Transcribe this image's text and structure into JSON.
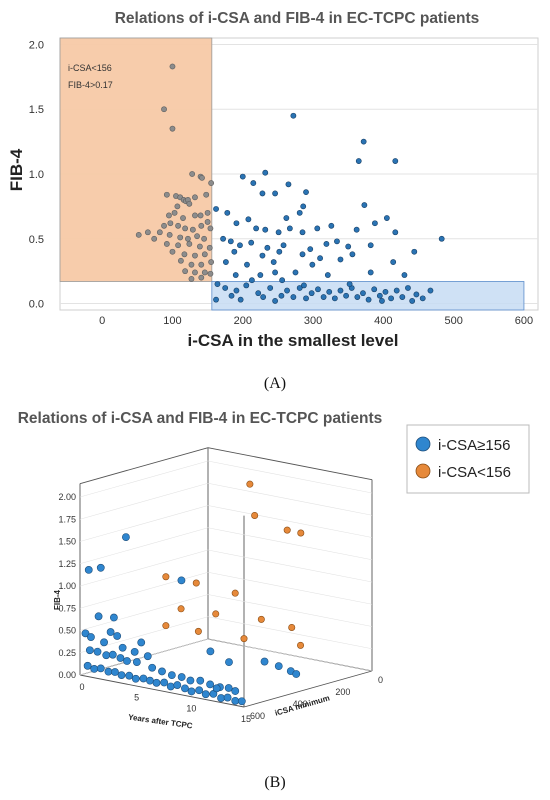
{
  "chart_data": [
    {
      "type": "scatter",
      "title": "Relations of i-CSA and FIB-4 in EC-TCPC patients",
      "xlabel": "i-CSA in the smallest level",
      "ylabel": "FIB-4",
      "xlim": [
        -60,
        620
      ],
      "ylim": [
        -0.05,
        2.05
      ],
      "xticks": [
        "0",
        "100",
        "200",
        "300",
        "400",
        "500",
        "600"
      ],
      "yticks": [
        "0.0",
        "0.5",
        "1.0",
        "1.5",
        "2.0"
      ],
      "grid": "horizontal",
      "annotation": [
        "i-CSA<156",
        "FIB-4>0.17"
      ],
      "regions": [
        {
          "name": "i-CSA<156",
          "x": [
            -60,
            156
          ],
          "y": [
            0.17,
            2.05
          ],
          "color": "#f7c9a6"
        },
        {
          "name": "FIB-4<0.17",
          "x": [
            156,
            600
          ],
          "y": [
            -0.05,
            0.17
          ],
          "color": "#c7dcf3"
        }
      ],
      "series": [
        {
          "color": "#8c8c8c",
          "points": [
            [
              100,
              1.83
            ],
            [
              88,
              1.5
            ],
            [
              100,
              1.35
            ],
            [
              128,
              1.0
            ],
            [
              140,
              0.98
            ],
            [
              142,
              0.97
            ],
            [
              155,
              0.93
            ],
            [
              92,
              0.84
            ],
            [
              105,
              0.83
            ],
            [
              111,
              0.82
            ],
            [
              116,
              0.8
            ],
            [
              119,
              0.79
            ],
            [
              122,
              0.8
            ],
            [
              107,
              0.75
            ],
            [
              124,
              0.77
            ],
            [
              132,
              0.82
            ],
            [
              148,
              0.84
            ],
            [
              103,
              0.7
            ],
            [
              95,
              0.68
            ],
            [
              115,
              0.66
            ],
            [
              132,
              0.68
            ],
            [
              140,
              0.68
            ],
            [
              150,
              0.7
            ],
            [
              88,
              0.6
            ],
            [
              97,
              0.62
            ],
            [
              108,
              0.6
            ],
            [
              118,
              0.58
            ],
            [
              129,
              0.57
            ],
            [
              141,
              0.6
            ],
            [
              154,
              0.58
            ],
            [
              150,
              0.63
            ],
            [
              52,
              0.53
            ],
            [
              65,
              0.55
            ],
            [
              82,
              0.55
            ],
            [
              74,
              0.5
            ],
            [
              96,
              0.53
            ],
            [
              111,
              0.51
            ],
            [
              122,
              0.5
            ],
            [
              135,
              0.52
            ],
            [
              145,
              0.5
            ],
            [
              92,
              0.46
            ],
            [
              108,
              0.45
            ],
            [
              124,
              0.46
            ],
            [
              139,
              0.44
            ],
            [
              153,
              0.43
            ],
            [
              100,
              0.4
            ],
            [
              117,
              0.38
            ],
            [
              132,
              0.37
            ],
            [
              146,
              0.38
            ],
            [
              112,
              0.33
            ],
            [
              127,
              0.3
            ],
            [
              141,
              0.3
            ],
            [
              155,
              0.32
            ],
            [
              118,
              0.25
            ],
            [
              132,
              0.24
            ],
            [
              146,
              0.24
            ],
            [
              154,
              0.23
            ],
            [
              127,
              0.19
            ],
            [
              141,
              0.2
            ]
          ]
        },
        {
          "color": "#2a73b3",
          "points": [
            [
              272,
              1.45
            ],
            [
              372,
              1.25
            ],
            [
              365,
              1.1
            ],
            [
              417,
              1.1
            ],
            [
              200,
              0.98
            ],
            [
              232,
              1.01
            ],
            [
              265,
              0.92
            ],
            [
              215,
              0.93
            ],
            [
              228,
              0.85
            ],
            [
              246,
              0.85
            ],
            [
              290,
              0.86
            ],
            [
              373,
              0.76
            ],
            [
              286,
              0.75
            ],
            [
              281,
              0.7
            ],
            [
              162,
              0.73
            ],
            [
              178,
              0.7
            ],
            [
              262,
              0.66
            ],
            [
              405,
              0.66
            ],
            [
              388,
              0.62
            ],
            [
              191,
              0.62
            ],
            [
              208,
              0.65
            ],
            [
              219,
              0.58
            ],
            [
              232,
              0.57
            ],
            [
              251,
              0.55
            ],
            [
              267,
              0.58
            ],
            [
              285,
              0.55
            ],
            [
              306,
              0.58
            ],
            [
              326,
              0.6
            ],
            [
              362,
              0.57
            ],
            [
              417,
              0.55
            ],
            [
              483,
              0.5
            ],
            [
              172,
              0.5
            ],
            [
              183,
              0.48
            ],
            [
              196,
              0.45
            ],
            [
              212,
              0.47
            ],
            [
              235,
              0.43
            ],
            [
              258,
              0.45
            ],
            [
              296,
              0.42
            ],
            [
              319,
              0.46
            ],
            [
              334,
              0.48
            ],
            [
              350,
              0.44
            ],
            [
              382,
              0.45
            ],
            [
              444,
              0.4
            ],
            [
              188,
              0.4
            ],
            [
              228,
              0.37
            ],
            [
              252,
              0.4
            ],
            [
              285,
              0.38
            ],
            [
              310,
              0.35
            ],
            [
              339,
              0.34
            ],
            [
              356,
              0.38
            ],
            [
              176,
              0.32
            ],
            [
              206,
              0.3
            ],
            [
              244,
              0.32
            ],
            [
              299,
              0.3
            ],
            [
              414,
              0.32
            ],
            [
              190,
              0.22
            ],
            [
              225,
              0.22
            ],
            [
              246,
              0.24
            ],
            [
              275,
              0.24
            ],
            [
              321,
              0.22
            ],
            [
              382,
              0.24
            ],
            [
              430,
              0.22
            ],
            [
              213,
              0.18
            ],
            [
              256,
              0.18
            ],
            [
              164,
              0.15
            ],
            [
              175,
              0.12
            ],
            [
              191,
              0.1
            ],
            [
              205,
              0.14
            ],
            [
              222,
              0.08
            ],
            [
              239,
              0.12
            ],
            [
              255,
              0.06
            ],
            [
              263,
              0.1
            ],
            [
              272,
              0.05
            ],
            [
              281,
              0.12
            ],
            [
              290,
              0.04
            ],
            [
              298,
              0.08
            ],
            [
              307,
              0.11
            ],
            [
              315,
              0.05
            ],
            [
              323,
              0.09
            ],
            [
              331,
              0.04
            ],
            [
              339,
              0.1
            ],
            [
              347,
              0.06
            ],
            [
              355,
              0.12
            ],
            [
              363,
              0.05
            ],
            [
              371,
              0.08
            ],
            [
              379,
              0.03
            ],
            [
              387,
              0.11
            ],
            [
              395,
              0.06
            ],
            [
              403,
              0.09
            ],
            [
              411,
              0.04
            ],
            [
              419,
              0.1
            ],
            [
              427,
              0.05
            ],
            [
              435,
              0.12
            ],
            [
              447,
              0.07
            ],
            [
              456,
              0.04
            ],
            [
              467,
              0.1
            ],
            [
              184,
              0.06
            ],
            [
              197,
              0.03
            ],
            [
              229,
              0.05
            ],
            [
              246,
              0.02
            ],
            [
              162,
              0.03
            ],
            [
              287,
              0.14
            ],
            [
              352,
              0.15
            ],
            [
              398,
              0.02
            ],
            [
              441,
              0.02
            ]
          ]
        }
      ]
    },
    {
      "type": "scatter",
      "title": "Relations of i-CSA and FIB-4 in EC-TCPC patients",
      "xlabel": "Years after TCPC",
      "ylabel": "FIB-4",
      "zlabel": "iCSA minimum",
      "xticks": [
        "0",
        "5",
        "10",
        "15"
      ],
      "yticks": [
        "0.00",
        "0.25",
        "0.50",
        "0.75",
        "1.00",
        "1.25",
        "1.50",
        "1.75",
        "2.00"
      ],
      "zticks": [
        "600",
        "400",
        "200",
        "0"
      ],
      "grid": "3d",
      "legend": "top-right",
      "series": [
        {
          "name": "i-CSA≥156",
          "color": "#2f86cf",
          "points": [
            [
              4.2,
              1.65,
              600
            ],
            [
              0.8,
              1.2,
              600
            ],
            [
              1.9,
              1.25,
              600
            ],
            [
              4.4,
              1.0,
              350
            ],
            [
              3.1,
              0.72,
              600
            ],
            [
              1.7,
              0.7,
              600
            ],
            [
              0.5,
              0.48,
              600
            ],
            [
              2.8,
              0.55,
              600
            ],
            [
              3.4,
              0.52,
              600
            ],
            [
              5.6,
              0.5,
              600
            ],
            [
              1.0,
              0.45,
              600
            ],
            [
              2.2,
              0.42,
              600
            ],
            [
              3.9,
              0.4,
              600
            ],
            [
              5.0,
              0.38,
              600
            ],
            [
              6.2,
              0.36,
              600
            ],
            [
              0.9,
              0.3,
              600
            ],
            [
              1.6,
              0.3,
              600
            ],
            [
              2.4,
              0.28,
              600
            ],
            [
              3.0,
              0.3,
              600
            ],
            [
              3.7,
              0.28,
              600
            ],
            [
              4.3,
              0.26,
              600
            ],
            [
              5.2,
              0.27,
              600
            ],
            [
              6.6,
              0.24,
              600
            ],
            [
              7.5,
              0.22,
              600
            ],
            [
              8.4,
              0.2,
              600
            ],
            [
              9.3,
              0.2,
              600
            ],
            [
              10.1,
              0.18,
              600
            ],
            [
              11.0,
              0.2,
              600
            ],
            [
              11.9,
              0.18,
              600
            ],
            [
              12.8,
              0.17,
              600
            ],
            [
              13.6,
              0.18,
              600
            ],
            [
              14.2,
              0.16,
              600
            ],
            [
              0.7,
              0.12,
              600
            ],
            [
              1.3,
              0.1,
              600
            ],
            [
              1.9,
              0.12,
              600
            ],
            [
              2.6,
              0.1,
              600
            ],
            [
              3.2,
              0.11,
              600
            ],
            [
              3.8,
              0.09,
              600
            ],
            [
              4.5,
              0.1,
              600
            ],
            [
              5.1,
              0.08,
              600
            ],
            [
              5.8,
              0.1,
              600
            ],
            [
              6.4,
              0.09,
              600
            ],
            [
              7.0,
              0.08,
              600
            ],
            [
              7.7,
              0.1,
              600
            ],
            [
              8.3,
              0.07,
              600
            ],
            [
              8.9,
              0.1,
              600
            ],
            [
              9.6,
              0.08,
              600
            ],
            [
              10.2,
              0.06,
              600
            ],
            [
              10.9,
              0.09,
              600
            ],
            [
              11.5,
              0.06,
              600
            ],
            [
              12.2,
              0.08,
              600
            ],
            [
              12.9,
              0.05,
              600
            ],
            [
              13.5,
              0.07,
              600
            ],
            [
              14.2,
              0.05,
              600
            ],
            [
              14.8,
              0.06,
              600
            ],
            [
              12.5,
              0.15,
              600
            ],
            [
              9.0,
              0.38,
              450
            ],
            [
              10.7,
              0.3,
              450
            ],
            [
              12.0,
              0.27,
              350
            ],
            [
              13.3,
              0.25,
              350
            ],
            [
              14.4,
              0.22,
              350
            ],
            [
              14.9,
              0.2,
              350
            ]
          ]
        },
        {
          "name": "i-CSA<156",
          "color": "#e6893a",
          "points": [
            [
              5,
              1.9,
              60
            ],
            [
              7,
              1.65,
              140
            ],
            [
              9,
              1.5,
              90
            ],
            [
              12,
              1.6,
              180
            ],
            [
              2,
              0.95,
              300
            ],
            [
              4,
              0.9,
              260
            ],
            [
              6,
              0.78,
              180
            ],
            [
              3,
              0.6,
              280
            ],
            [
              5,
              0.55,
              220
            ],
            [
              8,
              0.52,
              160
            ],
            [
              10,
              0.45,
              120
            ],
            [
              2,
              0.4,
              300
            ],
            [
              4,
              0.35,
              250
            ],
            [
              7,
              0.3,
              190
            ],
            [
              11,
              0.28,
              130
            ]
          ]
        }
      ]
    }
  ],
  "panels": {
    "a": "(A)",
    "b": "(B)"
  }
}
